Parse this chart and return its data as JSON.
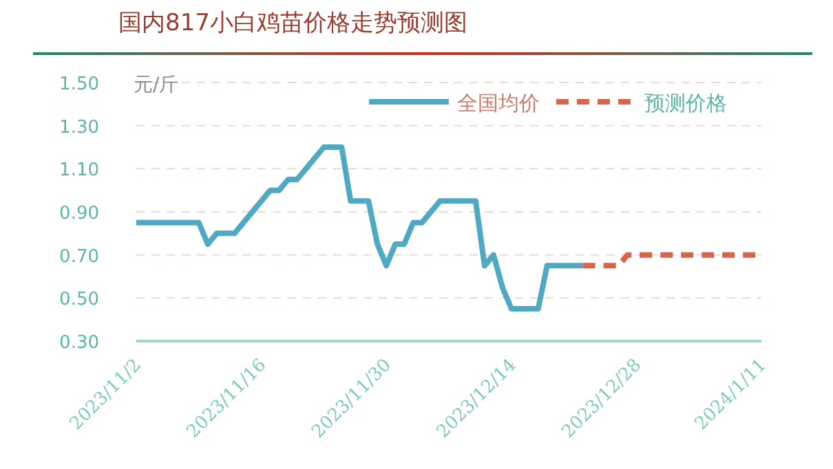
{
  "chart_data": {
    "type": "line",
    "title": "国内817小白鸡苗价格走势预测图",
    "ylabel": "元/斤",
    "ylim": [
      0.3,
      1.5
    ],
    "yticks": [
      {
        "value": 0.3,
        "label": "0.30"
      },
      {
        "value": 0.5,
        "label": "0.50"
      },
      {
        "value": 0.7,
        "label": "0.70"
      },
      {
        "value": 0.9,
        "label": "0.90"
      },
      {
        "value": 1.1,
        "label": "1.10"
      },
      {
        "value": 1.3,
        "label": "1.30"
      },
      {
        "value": 1.5,
        "label": "1.50"
      }
    ],
    "xlim": [
      "2023-11-02",
      "2024-01-11"
    ],
    "xticks": [
      {
        "value": "2023-11-02",
        "label": "2023/11/2"
      },
      {
        "value": "2023-11-16",
        "label": "2023/11/16"
      },
      {
        "value": "2023-11-30",
        "label": "2023/11/30"
      },
      {
        "value": "2023-12-14",
        "label": "2023/12/14"
      },
      {
        "value": "2023-12-28",
        "label": "2023/12/28"
      },
      {
        "value": "2024-01-11",
        "label": "2024/1/11"
      }
    ],
    "grid": "y",
    "legend": "top right",
    "marker": "none",
    "series": [
      {
        "name": "全国均价",
        "color": "#4fa9c2",
        "line_style": "solid",
        "x": [
          "2023-11-02",
          "2023-11-09",
          "2023-11-10",
          "2023-11-11",
          "2023-11-13",
          "2023-11-17",
          "2023-11-18",
          "2023-11-19",
          "2023-11-20",
          "2023-11-23",
          "2023-11-25",
          "2023-11-26",
          "2023-11-28",
          "2023-11-29",
          "2023-11-30",
          "2023-12-01",
          "2023-12-02",
          "2023-12-03",
          "2023-12-04",
          "2023-12-06",
          "2023-12-10",
          "2023-12-11",
          "2023-12-12",
          "2023-12-13",
          "2023-12-14",
          "2023-12-17",
          "2023-12-18",
          "2023-12-22"
        ],
        "values": [
          0.85,
          0.85,
          0.75,
          0.8,
          0.8,
          1.0,
          1.0,
          1.05,
          1.05,
          1.2,
          1.2,
          0.95,
          0.95,
          0.75,
          0.65,
          0.75,
          0.75,
          0.85,
          0.85,
          0.95,
          0.95,
          0.65,
          0.7,
          0.55,
          0.45,
          0.45,
          0.65,
          0.65
        ]
      },
      {
        "name": "预测价格",
        "color": "#d9644a",
        "line_style": "dashed",
        "x": [
          "2023-12-22",
          "2023-12-26",
          "2023-12-27",
          "2024-01-11"
        ],
        "values": [
          0.65,
          0.65,
          0.7,
          0.7
        ]
      }
    ]
  }
}
